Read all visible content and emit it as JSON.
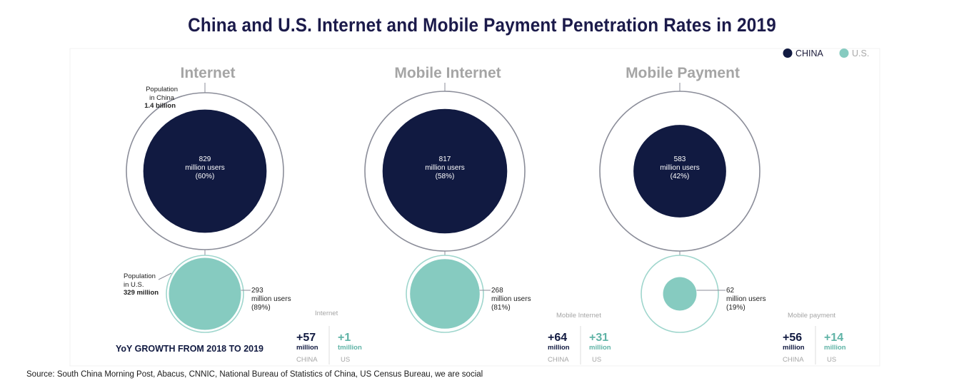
{
  "title": "China and U.S. Internet and Mobile Payment Penetration Rates in 2019",
  "legend": [
    {
      "label": "CHINA",
      "color": "#111a41"
    },
    {
      "label": "U.S.",
      "color": "#86cbc0"
    }
  ],
  "colors": {
    "china": "#111a41",
    "us": "#86cbc0",
    "ring": "#8b8d99",
    "us_ring": "#9fd6cd",
    "panel_title": "#a5a5a5",
    "text": "#222222"
  },
  "chart_data": {
    "type": "bubble",
    "title": "China and U.S. Internet and Mobile Payment Penetration Rates in 2019",
    "categories": [
      "Internet",
      "Mobile Internet",
      "Mobile Payment"
    ],
    "population": {
      "china_billion": 1.4,
      "us_million": 329
    },
    "population_labels": {
      "china": [
        "Population",
        "in China",
        "1.4 billion"
      ],
      "us": [
        "Population",
        "in U.S.",
        "329 million"
      ]
    },
    "series": [
      {
        "name": "CHINA",
        "unit": "million users",
        "values": [
          829,
          817,
          583
        ],
        "percent": [
          60,
          58,
          42
        ]
      },
      {
        "name": "U.S.",
        "unit": "million users",
        "values": [
          293,
          268,
          62
        ],
        "percent": [
          89,
          81,
          19
        ]
      }
    ],
    "panels": [
      {
        "title": "Internet",
        "china": {
          "value": "829",
          "unit": "million users",
          "pct": "(60%)"
        },
        "us": {
          "value": "293",
          "unit": "million users",
          "pct": "(89%)"
        },
        "growth_caption": "Internet",
        "growth": {
          "china_value": "+57",
          "china_unit": "million",
          "china_label": "CHINA",
          "us_value": "+1",
          "us_unit": "tmillion",
          "us_label": "US"
        }
      },
      {
        "title": "Mobile Internet",
        "china": {
          "value": "817",
          "unit": "million users",
          "pct": "(58%)"
        },
        "us": {
          "value": "268",
          "unit": "million users",
          "pct": "(81%)"
        },
        "growth_caption": "Mobile Internet",
        "growth": {
          "china_value": "+64",
          "china_unit": "million",
          "china_label": "CHINA",
          "us_value": "+31",
          "us_unit": "million",
          "us_label": "US"
        }
      },
      {
        "title": "Mobile Payment",
        "china": {
          "value": "583",
          "unit": "million users",
          "pct": "(42%)"
        },
        "us": {
          "value": "62",
          "unit": "million users",
          "pct": "(19%)"
        },
        "growth_caption": "Mobile payment",
        "growth": {
          "china_value": "+56",
          "china_unit": "million",
          "china_label": "CHINA",
          "us_value": "+14",
          "us_unit": "million",
          "us_label": "US"
        }
      }
    ],
    "yoy_label": "YoY GROWTH FROM 2018 TO 2019"
  },
  "source": "Source: South China Morning Post, Abacus, CNNIC, National Bureau of Statistics of China, US Census Bureau, we are social"
}
